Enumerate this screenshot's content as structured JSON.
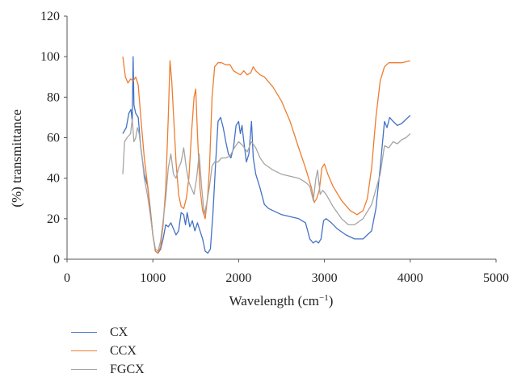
{
  "chart_data": {
    "type": "line",
    "xlabel": "Wavelength (cm",
    "xlabel_sup": "−1",
    "xlabel_close": ")",
    "ylabel": "(%) transmittance",
    "xlim": [
      0,
      5000
    ],
    "ylim": [
      0,
      120
    ],
    "xticks": [
      "0",
      "1000",
      "2000",
      "3000",
      "4000",
      "5000"
    ],
    "yticks": [
      "0",
      "20",
      "40",
      "60",
      "80",
      "100",
      "120"
    ],
    "grid": false,
    "legend_position": "bottom-left",
    "series": [
      {
        "name": "CX",
        "color": "#4472c4",
        "points": [
          [
            650,
            62
          ],
          [
            690,
            65
          ],
          [
            720,
            72
          ],
          [
            745,
            74
          ],
          [
            760,
            68
          ],
          [
            770,
            100
          ],
          [
            780,
            76
          ],
          [
            800,
            72
          ],
          [
            830,
            70
          ],
          [
            860,
            55
          ],
          [
            900,
            42
          ],
          [
            940,
            36
          ],
          [
            970,
            25
          ],
          [
            1000,
            12
          ],
          [
            1030,
            4
          ],
          [
            1060,
            3
          ],
          [
            1090,
            5
          ],
          [
            1120,
            10
          ],
          [
            1150,
            17
          ],
          [
            1180,
            16
          ],
          [
            1210,
            18
          ],
          [
            1240,
            15
          ],
          [
            1270,
            12
          ],
          [
            1300,
            14
          ],
          [
            1330,
            23
          ],
          [
            1360,
            22
          ],
          [
            1380,
            17
          ],
          [
            1400,
            23
          ],
          [
            1430,
            16
          ],
          [
            1460,
            19
          ],
          [
            1490,
            14
          ],
          [
            1520,
            18
          ],
          [
            1550,
            14
          ],
          [
            1580,
            10
          ],
          [
            1610,
            4
          ],
          [
            1640,
            3
          ],
          [
            1670,
            5
          ],
          [
            1700,
            22
          ],
          [
            1730,
            46
          ],
          [
            1760,
            68
          ],
          [
            1790,
            70
          ],
          [
            1820,
            65
          ],
          [
            1850,
            58
          ],
          [
            1880,
            52
          ],
          [
            1910,
            50
          ],
          [
            1940,
            55
          ],
          [
            1970,
            66
          ],
          [
            2000,
            68
          ],
          [
            2020,
            62
          ],
          [
            2040,
            66
          ],
          [
            2060,
            58
          ],
          [
            2090,
            48
          ],
          [
            2120,
            52
          ],
          [
            2150,
            68
          ],
          [
            2170,
            50
          ],
          [
            2200,
            42
          ],
          [
            2250,
            35
          ],
          [
            2300,
            27
          ],
          [
            2350,
            25
          ],
          [
            2400,
            24
          ],
          [
            2500,
            22
          ],
          [
            2600,
            21
          ],
          [
            2700,
            20
          ],
          [
            2780,
            18
          ],
          [
            2830,
            10
          ],
          [
            2870,
            8
          ],
          [
            2900,
            9
          ],
          [
            2930,
            8
          ],
          [
            2960,
            10
          ],
          [
            2990,
            19
          ],
          [
            3020,
            20
          ],
          [
            3080,
            18
          ],
          [
            3150,
            15
          ],
          [
            3250,
            12
          ],
          [
            3350,
            10
          ],
          [
            3450,
            10
          ],
          [
            3550,
            14
          ],
          [
            3600,
            25
          ],
          [
            3650,
            45
          ],
          [
            3700,
            68
          ],
          [
            3730,
            65
          ],
          [
            3760,
            70
          ],
          [
            3800,
            68
          ],
          [
            3850,
            66
          ],
          [
            3900,
            67
          ],
          [
            3950,
            69
          ],
          [
            4000,
            71
          ]
        ]
      },
      {
        "name": "CCX",
        "color": "#ed7d31",
        "points": [
          [
            650,
            100
          ],
          [
            680,
            90
          ],
          [
            710,
            87
          ],
          [
            740,
            89
          ],
          [
            770,
            88
          ],
          [
            800,
            90
          ],
          [
            830,
            86
          ],
          [
            860,
            70
          ],
          [
            900,
            50
          ],
          [
            940,
            36
          ],
          [
            970,
            24
          ],
          [
            1000,
            12
          ],
          [
            1030,
            4
          ],
          [
            1060,
            3
          ],
          [
            1090,
            6
          ],
          [
            1120,
            17
          ],
          [
            1150,
            35
          ],
          [
            1180,
            70
          ],
          [
            1200,
            98
          ],
          [
            1220,
            88
          ],
          [
            1240,
            72
          ],
          [
            1270,
            48
          ],
          [
            1300,
            32
          ],
          [
            1330,
            26
          ],
          [
            1360,
            25
          ],
          [
            1390,
            30
          ],
          [
            1420,
            40
          ],
          [
            1450,
            62
          ],
          [
            1480,
            80
          ],
          [
            1500,
            84
          ],
          [
            1520,
            62
          ],
          [
            1550,
            35
          ],
          [
            1580,
            24
          ],
          [
            1610,
            20
          ],
          [
            1640,
            32
          ],
          [
            1660,
            45
          ],
          [
            1690,
            80
          ],
          [
            1720,
            95
          ],
          [
            1760,
            97
          ],
          [
            1800,
            97
          ],
          [
            1850,
            96
          ],
          [
            1900,
            96
          ],
          [
            1940,
            93
          ],
          [
            1980,
            92
          ],
          [
            2020,
            91
          ],
          [
            2060,
            93
          ],
          [
            2100,
            91
          ],
          [
            2140,
            92
          ],
          [
            2170,
            95
          ],
          [
            2200,
            93
          ],
          [
            2250,
            91
          ],
          [
            2300,
            90
          ],
          [
            2400,
            85
          ],
          [
            2500,
            78
          ],
          [
            2600,
            68
          ],
          [
            2700,
            55
          ],
          [
            2780,
            45
          ],
          [
            2850,
            35
          ],
          [
            2880,
            28
          ],
          [
            2910,
            30
          ],
          [
            2940,
            34
          ],
          [
            2970,
            45
          ],
          [
            3000,
            47
          ],
          [
            3040,
            42
          ],
          [
            3100,
            36
          ],
          [
            3200,
            29
          ],
          [
            3300,
            24
          ],
          [
            3380,
            22
          ],
          [
            3450,
            24
          ],
          [
            3500,
            30
          ],
          [
            3550,
            45
          ],
          [
            3600,
            70
          ],
          [
            3650,
            88
          ],
          [
            3700,
            95
          ],
          [
            3750,
            97
          ],
          [
            3800,
            97
          ],
          [
            3900,
            97
          ],
          [
            4000,
            98
          ]
        ]
      },
      {
        "name": "FGCX",
        "color": "#a5a5a5",
        "points": [
          [
            650,
            42
          ],
          [
            670,
            58
          ],
          [
            700,
            60
          ],
          [
            740,
            62
          ],
          [
            760,
            69
          ],
          [
            780,
            58
          ],
          [
            800,
            60
          ],
          [
            820,
            65
          ],
          [
            840,
            62
          ],
          [
            870,
            52
          ],
          [
            900,
            40
          ],
          [
            940,
            31
          ],
          [
            970,
            22
          ],
          [
            1000,
            12
          ],
          [
            1030,
            5
          ],
          [
            1060,
            4
          ],
          [
            1090,
            9
          ],
          [
            1120,
            19
          ],
          [
            1150,
            30
          ],
          [
            1180,
            45
          ],
          [
            1210,
            52
          ],
          [
            1240,
            42
          ],
          [
            1270,
            40
          ],
          [
            1300,
            45
          ],
          [
            1330,
            48
          ],
          [
            1360,
            55
          ],
          [
            1390,
            45
          ],
          [
            1420,
            38
          ],
          [
            1450,
            35
          ],
          [
            1480,
            32
          ],
          [
            1510,
            40
          ],
          [
            1540,
            52
          ],
          [
            1570,
            35
          ],
          [
            1600,
            22
          ],
          [
            1630,
            28
          ],
          [
            1660,
            36
          ],
          [
            1690,
            46
          ],
          [
            1720,
            48
          ],
          [
            1760,
            48
          ],
          [
            1800,
            50
          ],
          [
            1850,
            50
          ],
          [
            1900,
            51
          ],
          [
            1950,
            55
          ],
          [
            2000,
            58
          ],
          [
            2050,
            56
          ],
          [
            2100,
            53
          ],
          [
            2150,
            58
          ],
          [
            2200,
            55
          ],
          [
            2250,
            50
          ],
          [
            2300,
            47
          ],
          [
            2400,
            44
          ],
          [
            2500,
            42
          ],
          [
            2600,
            41
          ],
          [
            2700,
            40
          ],
          [
            2780,
            38
          ],
          [
            2830,
            36
          ],
          [
            2870,
            29
          ],
          [
            2900,
            40
          ],
          [
            2920,
            44
          ],
          [
            2950,
            32
          ],
          [
            2980,
            34
          ],
          [
            3020,
            32
          ],
          [
            3100,
            26
          ],
          [
            3200,
            20
          ],
          [
            3280,
            17
          ],
          [
            3350,
            17
          ],
          [
            3450,
            20
          ],
          [
            3550,
            27
          ],
          [
            3650,
            42
          ],
          [
            3700,
            56
          ],
          [
            3750,
            55
          ],
          [
            3800,
            58
          ],
          [
            3850,
            57
          ],
          [
            3900,
            59
          ],
          [
            3950,
            60
          ],
          [
            4000,
            62
          ]
        ]
      }
    ]
  }
}
